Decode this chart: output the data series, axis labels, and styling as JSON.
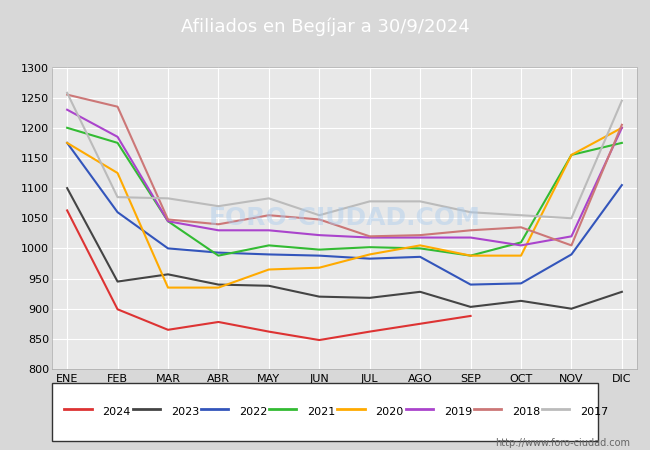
{
  "title": "Afiliados en Begíjar a 30/9/2024",
  "ylim": [
    800,
    1300
  ],
  "yticks": [
    800,
    850,
    900,
    950,
    1000,
    1050,
    1100,
    1150,
    1200,
    1250,
    1300
  ],
  "months": [
    "ENE",
    "FEB",
    "MAR",
    "ABR",
    "MAY",
    "JUN",
    "JUL",
    "AGO",
    "SEP",
    "OCT",
    "NOV",
    "DIC"
  ],
  "watermark": "http://www.foro-ciudad.com",
  "series": [
    {
      "label": "2024",
      "color": "#dd3333",
      "data": [
        1063,
        899,
        865,
        878,
        862,
        848,
        862,
        875,
        888,
        null,
        null,
        null
      ]
    },
    {
      "label": "2023",
      "color": "#444444",
      "data": [
        1100,
        945,
        957,
        940,
        938,
        920,
        918,
        928,
        903,
        913,
        900,
        928
      ]
    },
    {
      "label": "2022",
      "color": "#3355bb",
      "data": [
        1175,
        1060,
        1000,
        993,
        990,
        988,
        983,
        986,
        940,
        942,
        990,
        1105
      ]
    },
    {
      "label": "2021",
      "color": "#33bb33",
      "data": [
        1200,
        1175,
        1045,
        988,
        1005,
        998,
        1002,
        1000,
        988,
        1010,
        1155,
        1175
      ]
    },
    {
      "label": "2020",
      "color": "#ffaa00",
      "data": [
        1175,
        1125,
        935,
        935,
        965,
        968,
        990,
        1005,
        988,
        988,
        1155,
        1200
      ]
    },
    {
      "label": "2019",
      "color": "#aa44cc",
      "data": [
        1230,
        1185,
        1045,
        1030,
        1030,
        1022,
        1018,
        1018,
        1018,
        1005,
        1020,
        1200
      ]
    },
    {
      "label": "2018",
      "color": "#cc7777",
      "data": [
        1255,
        1235,
        1048,
        1040,
        1055,
        1048,
        1020,
        1022,
        1030,
        1035,
        1005,
        1205
      ]
    },
    {
      "label": "2017",
      "color": "#bbbbbb",
      "data": [
        1258,
        1085,
        1083,
        1070,
        1083,
        1055,
        1078,
        1078,
        1060,
        1055,
        1050,
        1245
      ]
    }
  ],
  "header_bg": "#5588bb",
  "header_text_color": "#ffffff",
  "fig_bg": "#d8d8d8",
  "plot_bg": "#e8e8e8",
  "grid_color": "#ffffff",
  "legend_border": "#333333",
  "title_fontsize": 13
}
